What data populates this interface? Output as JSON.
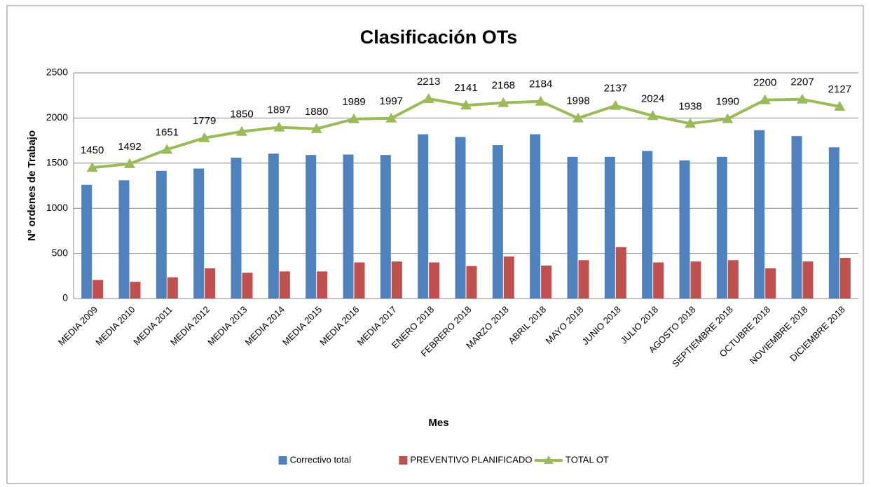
{
  "chart_data": {
    "type": "bar",
    "title": "Clasificación OTs",
    "x_label": "Mes",
    "y_label": "Nº ordenes de Trabajo",
    "categories": [
      "MEDIA 2009",
      "MEDIA 2010",
      "MEDIA 2011",
      "MEDIA 2012",
      "MEDIA 2013",
      "MEDIA 2014",
      "MEDIA 2015",
      "MEDIA 2016",
      "MEDIA 2017",
      "ENERO 2018",
      "FEBRERO 2018",
      "MARZO 2018",
      "ABRIL 2018",
      "MAYO 2018",
      "JUNIO 2018",
      "JULIO 2018",
      "AGOSTO 2018",
      "SEPTIEMBRE 2018",
      "OCTUBRE 2018",
      "NOVIEMBRE 2018",
      "DICIEMBRE 2018"
    ],
    "series": [
      {
        "name": "Correctivo total",
        "type": "bar",
        "color": "#4f81bd",
        "values": [
          1260,
          1310,
          1415,
          1440,
          1560,
          1605,
          1590,
          1595,
          1590,
          1820,
          1790,
          1700,
          1820,
          1570,
          1570,
          1635,
          1530,
          1570,
          1865,
          1800,
          1675
        ]
      },
      {
        "name": "PREVENTIVO PLANIFICADO",
        "type": "bar",
        "color": "#c0504d",
        "values": [
          205,
          185,
          235,
          335,
          285,
          300,
          300,
          400,
          410,
          400,
          360,
          465,
          365,
          425,
          570,
          400,
          410,
          425,
          335,
          410,
          450
        ]
      },
      {
        "name": "TOTAL OT",
        "type": "line",
        "color": "#9bbb59",
        "values": [
          1450,
          1492,
          1651,
          1779,
          1850,
          1897,
          1880,
          1989,
          1997,
          2213,
          2141,
          2168,
          2184,
          1998,
          2137,
          2024,
          1938,
          1990,
          2200,
          2207,
          2127
        ],
        "data_labels": true
      }
    ],
    "ylim": [
      0,
      2500
    ],
    "yticks": [
      0,
      500,
      1000,
      1500,
      2000,
      2500
    ],
    "grid": true,
    "legend": "bottom"
  }
}
